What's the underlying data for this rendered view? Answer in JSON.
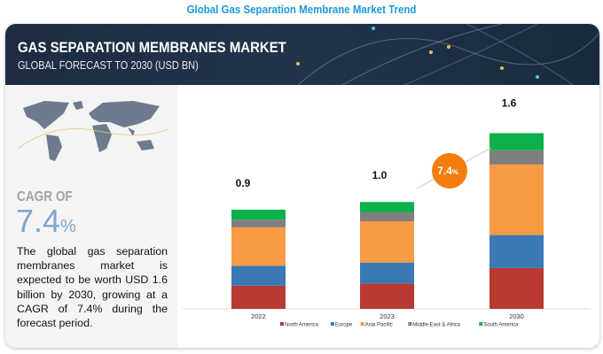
{
  "page_title": "Global Gas Separation Membrane Market Trend",
  "header": {
    "title": "GAS SEPARATION MEMBRANES MARKET",
    "subtitle": "GLOBAL FORECAST TO 2030 (USD BN)"
  },
  "summary": {
    "cagr_label": "CAGR OF",
    "cagr_value": "7.4",
    "cagr_unit": "%",
    "description": "The global gas separation membranes market is expected to be worth USD 1.6 billion by 2030, growing at a CAGR of 7.4% during the forecast period."
  },
  "chart_data": {
    "type": "bar",
    "stacked": true,
    "categories": [
      "2022",
      "2023",
      "2030"
    ],
    "totals_labels": [
      "0.9",
      "1.0",
      "1.6"
    ],
    "series": [
      {
        "name": "North America",
        "color": "#b83a32",
        "values": [
          0.21,
          0.23,
          0.37
        ]
      },
      {
        "name": "Europe",
        "color": "#3b78b6",
        "values": [
          0.18,
          0.19,
          0.3
        ]
      },
      {
        "name": "Asia Pacific",
        "color": "#f99a45",
        "values": [
          0.35,
          0.375,
          0.64
        ]
      },
      {
        "name": "Middle East & Africa",
        "color": "#7f7f7f",
        "values": [
          0.07,
          0.08,
          0.13
        ]
      },
      {
        "name": "South America",
        "color": "#0db14b",
        "values": [
          0.09,
          0.095,
          0.155
        ]
      }
    ],
    "annotation": {
      "text": "7.4",
      "unit": "%",
      "color": "#f57c0e"
    },
    "legend": "bottom",
    "grid": false,
    "ylabel": "",
    "xlabel": ""
  }
}
